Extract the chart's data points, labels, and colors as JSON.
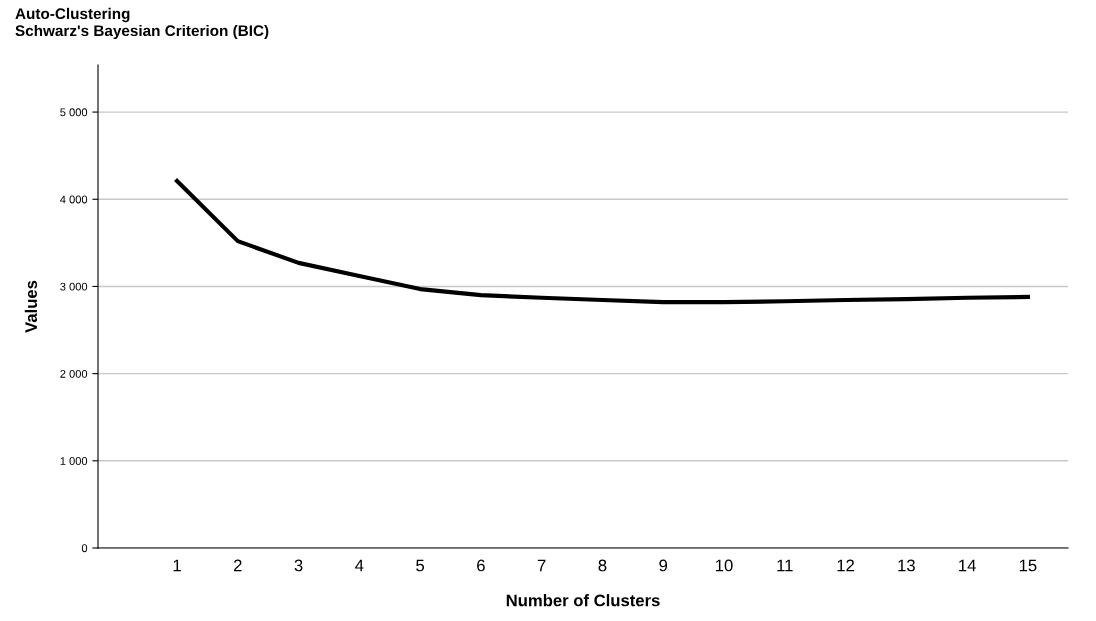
{
  "chart_data": {
    "type": "line",
    "title": "Auto-Clustering",
    "subtitle": "Schwarz's Bayesian Criterion (BIC)",
    "xlabel": "Number of Clusters",
    "ylabel": "Values",
    "categories": [
      "1",
      "2",
      "3",
      "4",
      "5",
      "6",
      "7",
      "8",
      "9",
      "10",
      "11",
      "12",
      "13",
      "14",
      "15"
    ],
    "series": [
      {
        "color": "#000000",
        "values": [
          4210,
          3520,
          3270,
          3120,
          2970,
          2900,
          2870,
          2845,
          2820,
          2820,
          2830,
          2845,
          2855,
          2870,
          2880
        ]
      }
    ],
    "ylim": [
      0,
      5540
    ],
    "yticks": [
      {
        "value": 0,
        "label": "0"
      },
      {
        "value": 1000,
        "label": "1 000"
      },
      {
        "value": 2000,
        "label": "2 000"
      },
      {
        "value": 3000,
        "label": "3 000"
      },
      {
        "value": 4000,
        "label": "4 000"
      },
      {
        "value": 5000,
        "label": "5 000"
      }
    ],
    "grid": "y",
    "legend": false,
    "marker": "none",
    "line_style": "solid"
  }
}
